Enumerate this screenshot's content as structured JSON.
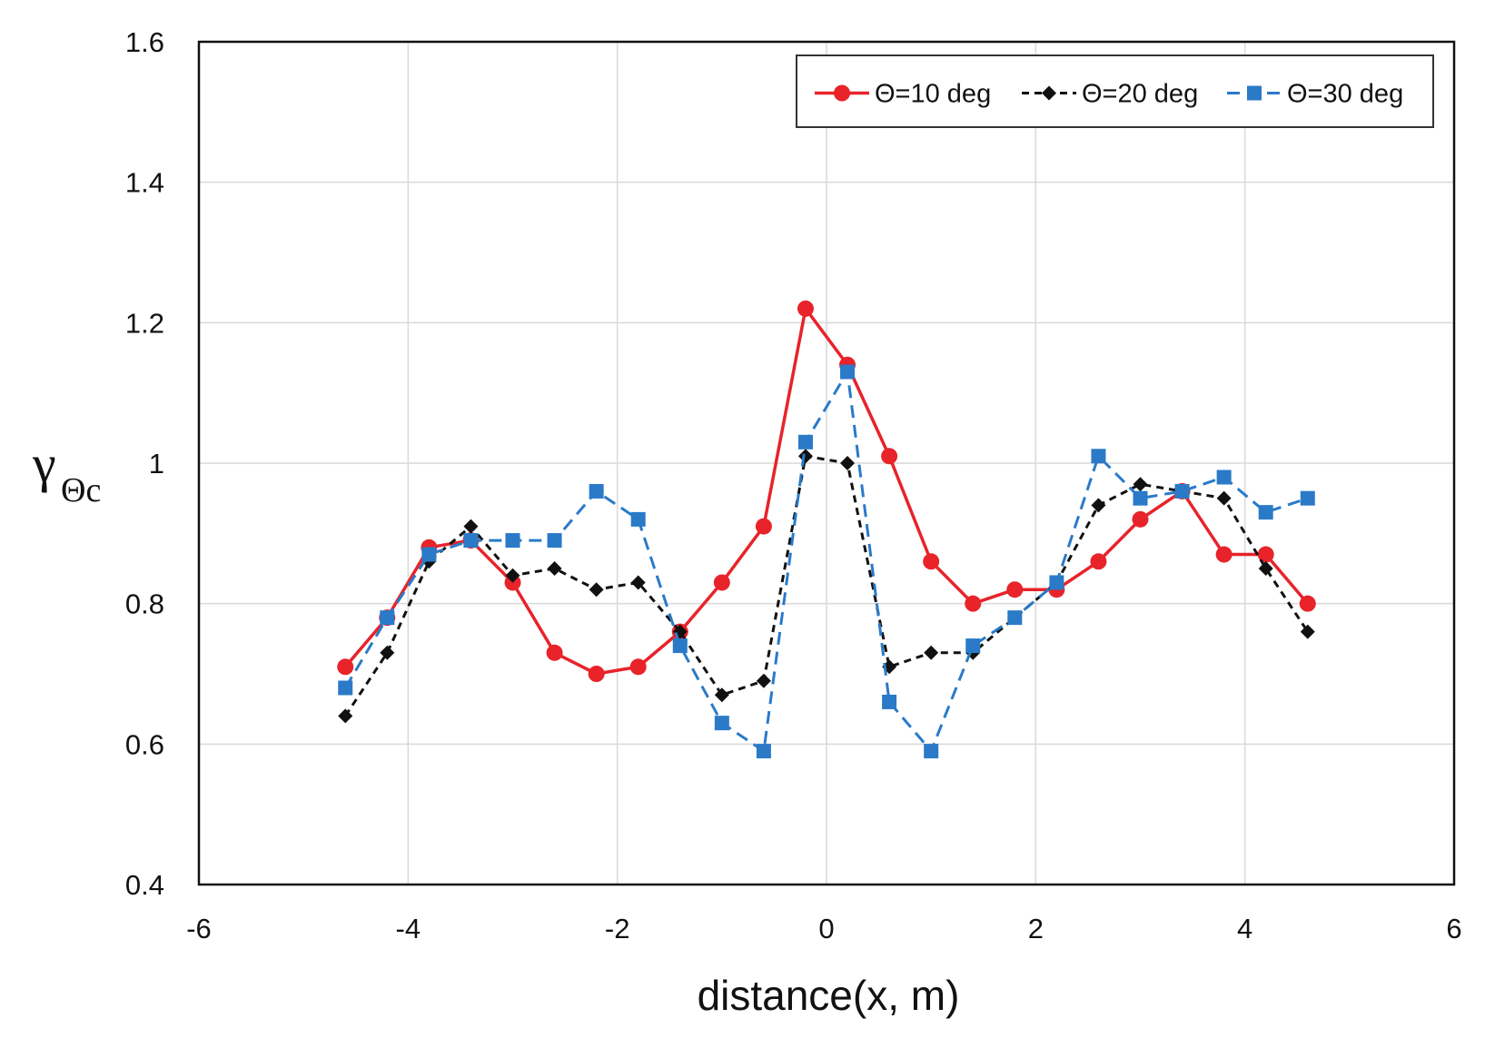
{
  "chart_data": {
    "type": "line",
    "title": "",
    "xlabel": "distance(x,  m)",
    "ylabel": {
      "main": "γ",
      "sub": "Θc"
    },
    "xlim": [
      -6,
      6
    ],
    "ylim": [
      0.4,
      1.6
    ],
    "xticks": [
      -6,
      -4,
      -2,
      0,
      2,
      4,
      6
    ],
    "yticks": [
      0.4,
      0.6,
      0.8,
      1,
      1.2,
      1.4,
      1.6
    ],
    "xtick_labels": [
      "-6",
      "-4",
      "-2",
      "0",
      "2",
      "4",
      "6"
    ],
    "ytick_labels": [
      "0.4",
      "0.6",
      "0.8",
      "1",
      "1.2",
      "1.4",
      "1.6"
    ],
    "grid": true,
    "legend_position": "top-right",
    "series": [
      {
        "name": "Θ=10 deg",
        "color": "#e8232a",
        "marker": "circle",
        "dash": "solid",
        "x": [
          -4.6,
          -4.2,
          -3.8,
          -3.4,
          -3.0,
          -2.6,
          -2.2,
          -1.8,
          -1.4,
          -1.0,
          -0.6,
          -0.2,
          0.2,
          0.6,
          1.0,
          1.4,
          1.8,
          2.2,
          2.6,
          3.0,
          3.4,
          3.8,
          4.2,
          4.6
        ],
        "y": [
          0.71,
          0.78,
          0.88,
          0.89,
          0.83,
          0.73,
          0.7,
          0.71,
          0.76,
          0.83,
          0.91,
          1.22,
          1.14,
          1.01,
          0.86,
          0.8,
          0.82,
          0.82,
          0.86,
          0.92,
          0.96,
          0.87,
          0.87,
          0.8
        ]
      },
      {
        "name": "Θ=20 deg",
        "color": "#111111",
        "marker": "diamond",
        "dash": "dashed",
        "x": [
          -4.6,
          -4.2,
          -3.8,
          -3.4,
          -3.0,
          -2.6,
          -2.2,
          -1.8,
          -1.4,
          -1.0,
          -0.6,
          -0.2,
          0.2,
          0.6,
          1.0,
          1.4,
          1.8,
          2.2,
          2.6,
          3.0,
          3.4,
          3.8,
          4.2,
          4.6
        ],
        "y": [
          0.64,
          0.73,
          0.86,
          0.91,
          0.84,
          0.85,
          0.82,
          0.83,
          0.76,
          0.67,
          0.69,
          1.01,
          1.0,
          0.71,
          0.73,
          0.73,
          0.78,
          0.83,
          0.94,
          0.97,
          0.96,
          0.95,
          0.85,
          0.76
        ]
      },
      {
        "name": "Θ=30 deg",
        "color": "#2a7ac8",
        "marker": "square",
        "dash": "dashed",
        "x": [
          -4.6,
          -4.2,
          -3.8,
          -3.4,
          -3.0,
          -2.6,
          -2.2,
          -1.8,
          -1.4,
          -1.0,
          -0.6,
          -0.2,
          0.2,
          0.6,
          1.0,
          1.4,
          1.8,
          2.2,
          2.6,
          3.0,
          3.4,
          3.8,
          4.2,
          4.6
        ],
        "y": [
          0.68,
          0.78,
          0.87,
          0.89,
          0.89,
          0.89,
          0.96,
          0.92,
          0.74,
          0.63,
          0.59,
          1.03,
          1.13,
          0.66,
          0.59,
          0.74,
          0.78,
          0.83,
          1.01,
          0.95,
          0.96,
          0.98,
          0.93,
          0.95
        ]
      }
    ]
  }
}
